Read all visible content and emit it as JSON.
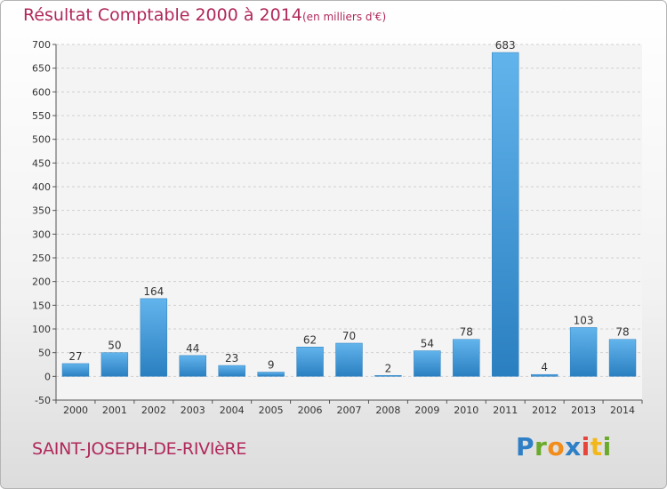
{
  "header": {
    "title": "Résultat Comptable 2000 à 2014",
    "units": "(en milliers d'€)"
  },
  "footer": {
    "town": "SAINT-JOSEPH-DE-RIVIèRE",
    "brand": "Proxiti"
  },
  "chart_data": {
    "type": "bar",
    "title": "Résultat Comptable 2000 à 2014",
    "subtitle": "(en milliers d'€)",
    "xlabel": "",
    "ylabel": "",
    "categories": [
      "2000",
      "2001",
      "2002",
      "2003",
      "2004",
      "2005",
      "2006",
      "2007",
      "2008",
      "2009",
      "2010",
      "2011",
      "2012",
      "2013",
      "2014"
    ],
    "values": [
      27,
      50,
      164,
      44,
      23,
      9,
      62,
      70,
      2,
      54,
      78,
      683,
      4,
      103,
      78
    ],
    "ylim": [
      -50,
      700
    ],
    "yticks": [
      -50,
      0,
      50,
      100,
      150,
      200,
      250,
      300,
      350,
      400,
      450,
      500,
      550,
      600,
      650,
      700
    ],
    "grid": true,
    "bar_color": "#3b95d9"
  }
}
